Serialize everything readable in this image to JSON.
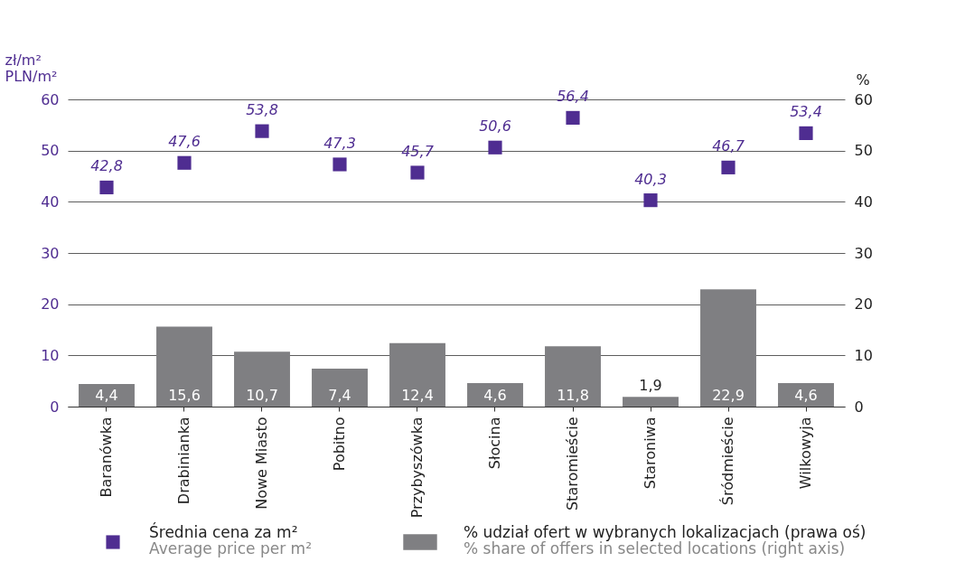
{
  "chart_data": {
    "type": "bar",
    "ylabel": "zł/m²\nPLN/m²",
    "y2label": "%",
    "categories": [
      "Baranówka",
      "Drabinianka",
      "Nowe Miasto",
      "Pobitno",
      "Przybyszówka",
      "Słocina",
      "Staromieście",
      "Staroniwa",
      "Śródmieście",
      "Wilkowyja"
    ],
    "series": [
      {
        "name": "% udział ofert w wybranych lokalizacjach (prawa oś)\n% share of offers in selected locations (right axis)",
        "type": "bar",
        "axis": "y2",
        "color": "#7f7f82",
        "values": [
          4.4,
          15.6,
          10.7,
          7.4,
          12.4,
          4.6,
          11.8,
          1.9,
          22.9,
          4.6
        ],
        "value_labels": [
          "4,4",
          "15,6",
          "10,7",
          "7,4",
          "12,4",
          "4,6",
          "11,8",
          "1,9",
          "22,9",
          "4,6"
        ]
      },
      {
        "name": "Średnia cena za m²\nAverage price per m²",
        "type": "scatter",
        "marker": "square",
        "color": "#4f2d91",
        "values": [
          42.8,
          47.6,
          53.8,
          47.3,
          45.7,
          50.6,
          56.4,
          40.3,
          46.7,
          53.4
        ],
        "value_labels": [
          "42,8",
          "47,6",
          "53,8",
          "47,3",
          "45,7",
          "50,6",
          "56,4",
          "40,3",
          "46,7",
          "53,4"
        ]
      }
    ],
    "ylim": [
      0,
      60
    ],
    "yticks": [
      0,
      10,
      20,
      30,
      40,
      50,
      60
    ],
    "y2lim": [
      0,
      60
    ],
    "y2ticks": [
      0,
      10,
      20,
      30,
      40,
      50,
      60
    ],
    "grid": "y",
    "legend": "bottom"
  }
}
